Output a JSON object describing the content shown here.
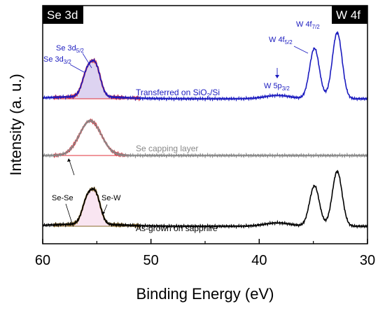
{
  "chart_data": {
    "type": "line",
    "xlabel": "Binding Energy (eV)",
    "ylabel": "Intensity (a. u.)",
    "xlim": [
      60,
      30
    ],
    "xticks": [
      "60",
      "50",
      "40",
      "30"
    ],
    "xtick_values": [
      60,
      50,
      40,
      30
    ],
    "grid": false,
    "region_tags": {
      "left": "Se 3d",
      "right": "W 4f"
    },
    "series": [
      {
        "name": "Transferred on SiO2/Si",
        "color": "#1b1bbf",
        "offset": 2,
        "peaks": [
          {
            "center": 55.9,
            "height": 0.42,
            "width": 0.45
          },
          {
            "center": 55.1,
            "height": 0.52,
            "width": 0.45
          },
          {
            "center": 38.3,
            "height": 0.06,
            "width": 1.2
          },
          {
            "center": 34.9,
            "height": 0.9,
            "width": 0.45
          },
          {
            "center": 32.8,
            "height": 1.18,
            "width": 0.45
          }
        ],
        "x_range": [
          60,
          30
        ]
      },
      {
        "name": "Se capping layer",
        "color": "#888888",
        "offset": 1,
        "peaks": [
          {
            "center": 55.6,
            "height": 0.62,
            "width": 1.0
          }
        ],
        "x_range": [
          60,
          30
        ]
      },
      {
        "name": "As-grown on sapphire",
        "color": "#000000",
        "offset": 0,
        "peaks": [
          {
            "center": 55.9,
            "height": 0.42,
            "width": 0.45
          },
          {
            "center": 55.1,
            "height": 0.5,
            "width": 0.45
          },
          {
            "center": 38.3,
            "height": 0.06,
            "width": 1.2
          },
          {
            "center": 34.9,
            "height": 0.72,
            "width": 0.45
          },
          {
            "center": 32.8,
            "height": 0.98,
            "width": 0.45
          }
        ],
        "x_range": [
          60,
          30
        ]
      }
    ],
    "fits": [
      {
        "series": "Transferred on SiO2/Si",
        "color": "#e0303a",
        "x_range": [
          59,
          51
        ]
      },
      {
        "series": "Se capping layer",
        "color": "#e0303a",
        "x_range": [
          59,
          52
        ]
      },
      {
        "series": "As-grown on sapphire",
        "color": "#8a6a2a",
        "x_range": [
          59,
          51
        ]
      }
    ],
    "annotations": {
      "se3d52": "Se 3d5/2",
      "se3d32": "Se 3d3/2",
      "w4f52": "W 4f5/2",
      "w4f72": "W 4f7/2",
      "w5p32": "W 5p3/2",
      "sese": "Se-Se",
      "sew": "Se-W"
    }
  }
}
